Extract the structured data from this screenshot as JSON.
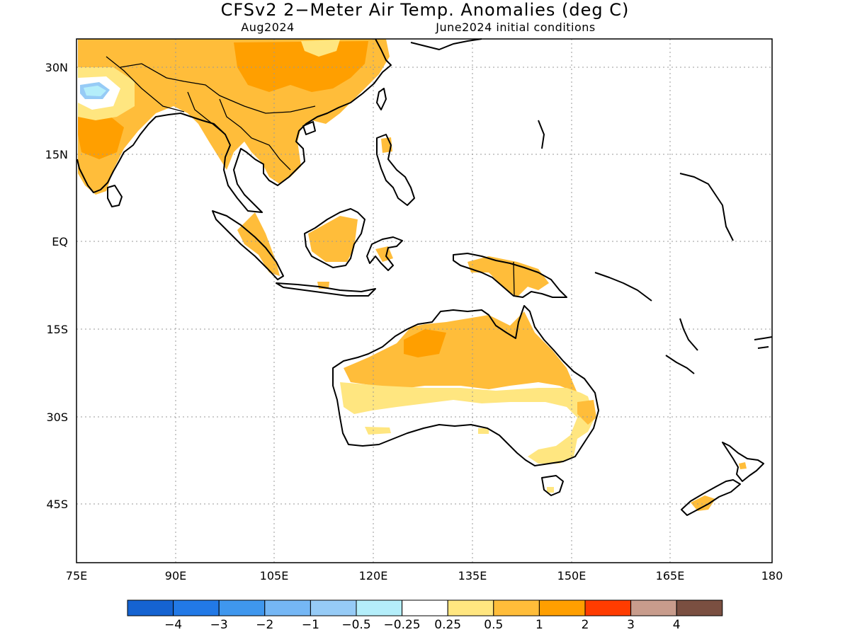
{
  "title": "CFSv2 2−Meter Air Temp. Anomalies (deg C)",
  "subtitle_left": "Aug2024",
  "subtitle_right": "June2024 initial conditions",
  "lon_ticks": [
    "75E",
    "90E",
    "105E",
    "120E",
    "135E",
    "150E",
    "165E",
    "180"
  ],
  "lat_ticks": [
    "30N",
    "15N",
    "EQ",
    "15S",
    "30S",
    "45S"
  ],
  "colorbar": {
    "colors": [
      "#1563d1",
      "#2279e6",
      "#3f97ee",
      "#75b7f5",
      "#96cbf6",
      "#b4eefa",
      "#ffffff",
      "#ffe680",
      "#ffbd3a",
      "#ff9f00",
      "#ff3c00",
      "#c89c8c",
      "#7a4f41"
    ],
    "labels": [
      "−4",
      "−3",
      "−2",
      "−1",
      "−0.5",
      "−0.25",
      "0.25",
      "0.5",
      "1",
      "2",
      "3",
      "4"
    ]
  },
  "field_colors": {
    "anom_025_05": "#ffe680",
    "anom_05_1": "#ffbd3a",
    "anom_1_2": "#ff9f00",
    "anom_neg_025_05": "#b4eefa",
    "anom_neg_05_1": "#96cbf6"
  }
}
